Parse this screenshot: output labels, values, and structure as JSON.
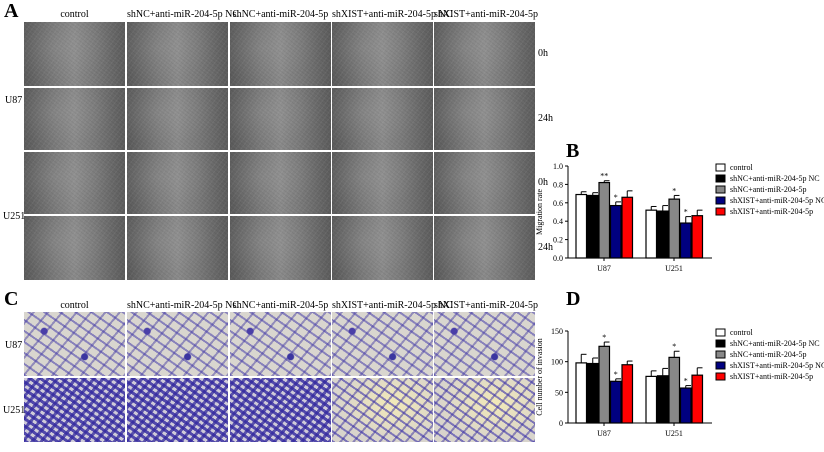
{
  "panels": {
    "a": "A",
    "b": "B",
    "c": "C",
    "d": "D"
  },
  "columns": [
    "control",
    "shNC+anti-miR-204-5p NC",
    "shNC+anti-miR-204-5p",
    "shXIST+anti-miR-204-5p NC",
    "shXIST+anti-miR-204-5p"
  ],
  "cell_lines": [
    "U87",
    "U251"
  ],
  "timepoints": [
    "0h",
    "24h"
  ],
  "colors": {
    "control": "#ffffff",
    "shNC_NC": "#000000",
    "shNC": "#888888",
    "shXIST_NC": "#000080",
    "shXIST": "#ff0000"
  },
  "chart_data": [
    {
      "type": "bar",
      "ylabel": "Migration rate",
      "categories": [
        "U87",
        "U251"
      ],
      "ylim": [
        0,
        1.0
      ],
      "yticks": [
        "0.0",
        "0.2",
        "0.4",
        "0.6",
        "0.8",
        "1.0"
      ],
      "legend": "right",
      "series": [
        {
          "name": "control",
          "values": [
            0.69,
            0.52
          ],
          "errors": [
            0.03,
            0.04
          ],
          "stars": [
            "",
            ""
          ]
        },
        {
          "name": "shNC+anti-miR-204-5p NC",
          "values": [
            0.68,
            0.51
          ],
          "errors": [
            0.03,
            0.06
          ],
          "stars": [
            "",
            ""
          ]
        },
        {
          "name": "shNC+anti-miR-204-5p",
          "values": [
            0.82,
            0.64
          ],
          "errors": [
            0.02,
            0.04
          ],
          "stars": [
            "**",
            "*"
          ]
        },
        {
          "name": "shXIST+anti-miR-204-5p NC",
          "values": [
            0.57,
            0.38
          ],
          "errors": [
            0.04,
            0.07
          ],
          "stars": [
            "*",
            "*"
          ]
        },
        {
          "name": "shXIST+anti-miR-204-5p",
          "values": [
            0.66,
            0.46
          ],
          "errors": [
            0.07,
            0.06
          ],
          "stars": [
            "",
            ""
          ]
        }
      ]
    },
    {
      "type": "bar",
      "ylabel": "Cell number of invasion",
      "categories": [
        "U87",
        "U251"
      ],
      "ylim": [
        0,
        150
      ],
      "yticks": [
        "0",
        "50",
        "100",
        "150"
      ],
      "legend": "right",
      "series": [
        {
          "name": "control",
          "values": [
            98,
            76
          ],
          "errors": [
            14,
            9
          ],
          "stars": [
            "",
            ""
          ]
        },
        {
          "name": "shNC+anti-miR-204-5p NC",
          "values": [
            97,
            77
          ],
          "errors": [
            9,
            12
          ],
          "stars": [
            "",
            ""
          ]
        },
        {
          "name": "shNC+anti-miR-204-5p",
          "values": [
            125,
            107
          ],
          "errors": [
            7,
            10
          ],
          "stars": [
            "*",
            "*"
          ]
        },
        {
          "name": "shXIST+anti-miR-204-5p NC",
          "values": [
            68,
            57
          ],
          "errors": [
            4,
            4
          ],
          "stars": [
            "*",
            "*"
          ]
        },
        {
          "name": "shXIST+anti-miR-204-5p",
          "values": [
            95,
            78
          ],
          "errors": [
            6,
            12
          ],
          "stars": [
            "",
            ""
          ]
        }
      ]
    }
  ]
}
